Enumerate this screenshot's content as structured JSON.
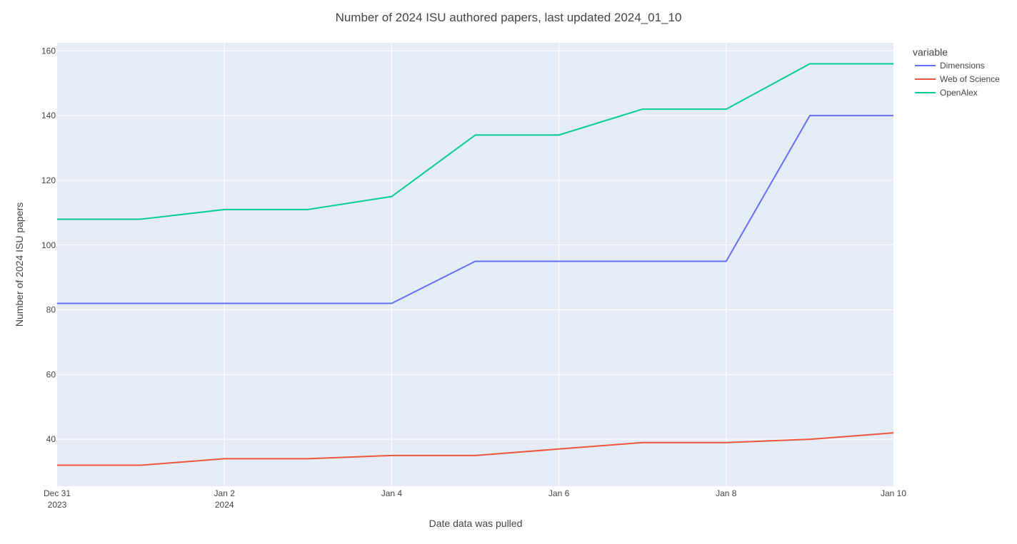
{
  "chart_data": {
    "type": "line",
    "title": "Number of 2024 ISU authored papers, last updated 2024_01_10",
    "xlabel": "Date data was pulled",
    "ylabel": "Number of 2024 ISU papers",
    "x": [
      "2023-12-31",
      "2024-01-01",
      "2024-01-02",
      "2024-01-03",
      "2024-01-04",
      "2024-01-05",
      "2024-01-06",
      "2024-01-07",
      "2024-01-08",
      "2024-01-09",
      "2024-01-10"
    ],
    "xlim": [
      "2023-12-31",
      "2024-01-10"
    ],
    "ylim": [
      25.5,
      162.5
    ],
    "x_ticks": [
      {
        "date": "2023-12-31",
        "label": "Dec 31",
        "sublabel": "2023"
      },
      {
        "date": "2024-01-02",
        "label": "Jan 2",
        "sublabel": "2024"
      },
      {
        "date": "2024-01-04",
        "label": "Jan 4",
        "sublabel": ""
      },
      {
        "date": "2024-01-06",
        "label": "Jan 6",
        "sublabel": ""
      },
      {
        "date": "2024-01-08",
        "label": "Jan 8",
        "sublabel": ""
      },
      {
        "date": "2024-01-10",
        "label": "Jan 10",
        "sublabel": ""
      }
    ],
    "y_ticks": [
      40,
      60,
      80,
      100,
      120,
      140,
      160
    ],
    "grid": true,
    "legend": {
      "title": "variable",
      "placement": "top-right, outside plot"
    },
    "series": [
      {
        "name": "Dimensions",
        "color": "#636efa",
        "values": [
          82,
          82,
          82,
          82,
          82,
          95,
          95,
          95,
          95,
          140,
          140
        ]
      },
      {
        "name": "Web of Science",
        "color": "#ef553b",
        "values": [
          32,
          32,
          34,
          34,
          35,
          35,
          37,
          39,
          39,
          40,
          42
        ]
      },
      {
        "name": "OpenAlex",
        "color": "#00cc96",
        "values": [
          108,
          108,
          111,
          111,
          115,
          134,
          134,
          142,
          142,
          156,
          156
        ]
      }
    ],
    "plot_background": "#e5ecf6",
    "grid_color": "#ffffff"
  }
}
